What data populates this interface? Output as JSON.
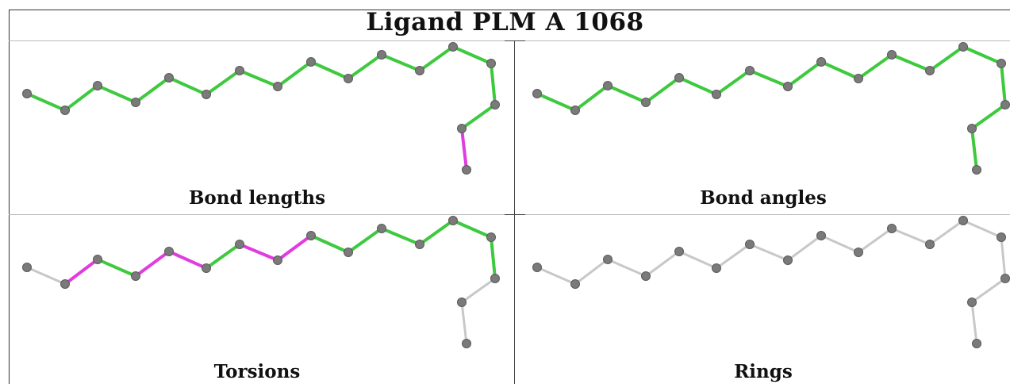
{
  "title": "Ligand PLM A 1068",
  "panels": [
    {
      "caption": "Bond lengths"
    },
    {
      "caption": "Bond angles"
    },
    {
      "caption": "Torsions"
    },
    {
      "caption": "Rings"
    }
  ],
  "colors": {
    "ok": "#3ec93e",
    "outlier": "#e03ce0",
    "neutral": "#c8c8c8",
    "atom": "#7a7a7a"
  }
}
